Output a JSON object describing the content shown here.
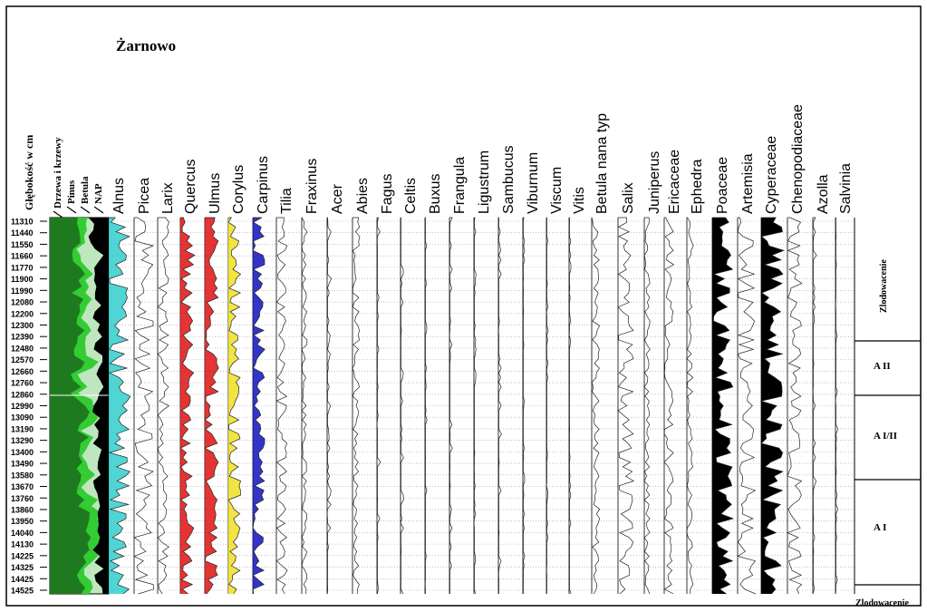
{
  "chart_data": {
    "type": "area",
    "title": "Żarnowo",
    "depth_axis_label": "Głębokość w cm",
    "depth_ticks": [
      "11310",
      "11440",
      "11550",
      "11660",
      "11770",
      "11900",
      "11990",
      "12080",
      "12200",
      "12300",
      "12390",
      "12480",
      "12570",
      "12660",
      "12760",
      "12860",
      "12990",
      "13090",
      "13190",
      "13290",
      "13400",
      "13490",
      "13580",
      "13670",
      "13760",
      "13860",
      "13950",
      "14040",
      "14130",
      "14225",
      "14325",
      "14425",
      "14525"
    ],
    "summary_legend": [
      "Drzewa i krzewy",
      "Pinus",
      "Betula",
      "NAP"
    ],
    "taxa": [
      "Alnus",
      "Picea",
      "Larix",
      "Quercus",
      "Ulmus",
      "Corylus",
      "Carpinus",
      "Tilia",
      "Fraxinus",
      "Acer",
      "Abies",
      "Fagus",
      "Celtis",
      "Buxus",
      "Frangula",
      "Ligustrum",
      "Sambucus",
      "Viburnum",
      "Viscum",
      "Vitis",
      "Betula nana typ",
      "Salix",
      "Juniperus",
      "Ericaceae",
      "Ephedra",
      "Poaceae",
      "Artemisia",
      "Cyperaceae",
      "Chenopodiaceae",
      "Azolla",
      "Salvinia"
    ],
    "zones": [
      {
        "label": "Zlodowacenie",
        "vertical": true
      },
      {
        "label": "A II",
        "vertical": false
      },
      {
        "label": "A I/II",
        "vertical": false
      },
      {
        "label": "A I",
        "vertical": false
      },
      {
        "label": "Zlodowacenie",
        "vertical": false
      }
    ],
    "colors": {
      "trees": "#1e7a1e",
      "pinus": "#33cc33",
      "nap": "#000000",
      "alnus": "#33cccc",
      "quercus": "#e01010",
      "ulmus": "#e01010",
      "corylus": "#f0e020",
      "carpinus": "#1010c0",
      "betula_band": "#bfe7bf"
    }
  }
}
